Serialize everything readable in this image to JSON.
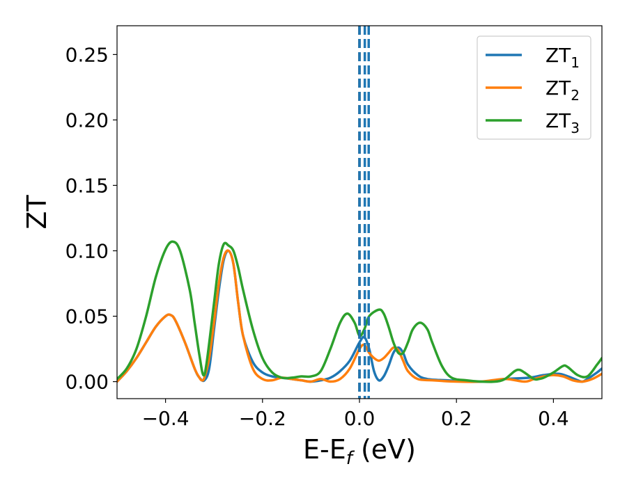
{
  "chart_data": {
    "type": "line",
    "xlabel": {
      "base": "E-E",
      "subscript": "f",
      "suffix": " (eV)"
    },
    "ylabel": "ZT",
    "xlim": [
      -0.5,
      0.5
    ],
    "ylim": [
      -0.013,
      0.272
    ],
    "xticks": [
      -0.4,
      -0.2,
      0.0,
      0.2,
      0.4
    ],
    "xtick_labels": [
      "−0.4",
      "−0.2",
      "0.0",
      "0.2",
      "0.4"
    ],
    "yticks": [
      0.0,
      0.05,
      0.1,
      0.15,
      0.2,
      0.25
    ],
    "ytick_labels": [
      "0.00",
      "0.05",
      "0.10",
      "0.15",
      "0.20",
      "0.25"
    ],
    "grid": false,
    "legend_position": "top-right",
    "vertical_lines": [
      {
        "x": 0.0,
        "color": "#000000",
        "style": "dashed"
      },
      {
        "x": 0.0,
        "color": "#1f77b4",
        "style": "dashed"
      },
      {
        "x": 0.011,
        "color": "#1f77b4",
        "style": "dashed"
      },
      {
        "x": 0.019,
        "color": "#1f77b4",
        "style": "dashed"
      }
    ],
    "series": [
      {
        "name": "ZT",
        "name_sub": "1",
        "color": "#1f77b4",
        "points": [
          [
            -0.5,
            0.0
          ],
          [
            -0.48,
            0.008
          ],
          [
            -0.46,
            0.018
          ],
          [
            -0.44,
            0.03
          ],
          [
            -0.42,
            0.042
          ],
          [
            -0.4,
            0.05
          ],
          [
            -0.39,
            0.051
          ],
          [
            -0.38,
            0.047
          ],
          [
            -0.36,
            0.03
          ],
          [
            -0.34,
            0.01
          ],
          [
            -0.33,
            0.003
          ],
          [
            -0.32,
            0.001
          ],
          [
            -0.31,
            0.01
          ],
          [
            -0.3,
            0.04
          ],
          [
            -0.29,
            0.07
          ],
          [
            -0.28,
            0.093
          ],
          [
            -0.27,
            0.1
          ],
          [
            -0.26,
            0.09
          ],
          [
            -0.25,
            0.06
          ],
          [
            -0.24,
            0.035
          ],
          [
            -0.22,
            0.015
          ],
          [
            -0.2,
            0.007
          ],
          [
            -0.18,
            0.004
          ],
          [
            -0.16,
            0.003
          ],
          [
            -0.14,
            0.002
          ],
          [
            -0.12,
            0.001
          ],
          [
            -0.1,
            0.0
          ],
          [
            -0.08,
            0.001
          ],
          [
            -0.06,
            0.003
          ],
          [
            -0.04,
            0.008
          ],
          [
            -0.02,
            0.016
          ],
          [
            0.0,
            0.03
          ],
          [
            0.01,
            0.034
          ],
          [
            0.02,
            0.025
          ],
          [
            0.03,
            0.008
          ],
          [
            0.04,
            0.001
          ],
          [
            0.05,
            0.004
          ],
          [
            0.06,
            0.012
          ],
          [
            0.07,
            0.022
          ],
          [
            0.08,
            0.026
          ],
          [
            0.09,
            0.022
          ],
          [
            0.1,
            0.013
          ],
          [
            0.12,
            0.005
          ],
          [
            0.14,
            0.002
          ],
          [
            0.18,
            0.001
          ],
          [
            0.25,
            0.0
          ],
          [
            0.3,
            0.002
          ],
          [
            0.35,
            0.003
          ],
          [
            0.38,
            0.005
          ],
          [
            0.41,
            0.006
          ],
          [
            0.43,
            0.004
          ],
          [
            0.45,
            0.001
          ],
          [
            0.46,
            0.0
          ],
          [
            0.47,
            0.002
          ],
          [
            0.49,
            0.007
          ],
          [
            0.5,
            0.01
          ]
        ]
      },
      {
        "name": "ZT",
        "name_sub": "2",
        "color": "#ff7f0e",
        "points": [
          [
            -0.5,
            0.0
          ],
          [
            -0.48,
            0.008
          ],
          [
            -0.46,
            0.018
          ],
          [
            -0.44,
            0.03
          ],
          [
            -0.42,
            0.042
          ],
          [
            -0.4,
            0.05
          ],
          [
            -0.39,
            0.051
          ],
          [
            -0.38,
            0.047
          ],
          [
            -0.36,
            0.03
          ],
          [
            -0.34,
            0.01
          ],
          [
            -0.33,
            0.003
          ],
          [
            -0.325,
            0.001
          ],
          [
            -0.32,
            0.003
          ],
          [
            -0.31,
            0.018
          ],
          [
            -0.3,
            0.045
          ],
          [
            -0.29,
            0.075
          ],
          [
            -0.28,
            0.095
          ],
          [
            -0.27,
            0.1
          ],
          [
            -0.26,
            0.09
          ],
          [
            -0.25,
            0.06
          ],
          [
            -0.24,
            0.035
          ],
          [
            -0.22,
            0.01
          ],
          [
            -0.2,
            0.002
          ],
          [
            -0.18,
            0.001
          ],
          [
            -0.16,
            0.003
          ],
          [
            -0.14,
            0.002
          ],
          [
            -0.12,
            0.001
          ],
          [
            -0.1,
            0.0
          ],
          [
            -0.08,
            0.002
          ],
          [
            -0.06,
            0.0
          ],
          [
            -0.04,
            0.002
          ],
          [
            -0.02,
            0.01
          ],
          [
            0.0,
            0.025
          ],
          [
            0.01,
            0.028
          ],
          [
            0.02,
            0.022
          ],
          [
            0.03,
            0.018
          ],
          [
            0.04,
            0.016
          ],
          [
            0.05,
            0.018
          ],
          [
            0.06,
            0.022
          ],
          [
            0.07,
            0.026
          ],
          [
            0.08,
            0.024
          ],
          [
            0.09,
            0.016
          ],
          [
            0.1,
            0.008
          ],
          [
            0.12,
            0.002
          ],
          [
            0.15,
            0.001
          ],
          [
            0.2,
            0.0
          ],
          [
            0.25,
            0.0
          ],
          [
            0.3,
            0.002
          ],
          [
            0.34,
            0.0
          ],
          [
            0.36,
            0.002
          ],
          [
            0.38,
            0.004
          ],
          [
            0.4,
            0.005
          ],
          [
            0.42,
            0.004
          ],
          [
            0.44,
            0.001
          ],
          [
            0.46,
            0.0
          ],
          [
            0.48,
            0.002
          ],
          [
            0.5,
            0.006
          ]
        ]
      },
      {
        "name": "ZT",
        "name_sub": "3",
        "color": "#2ca02c",
        "points": [
          [
            -0.5,
            0.002
          ],
          [
            -0.48,
            0.01
          ],
          [
            -0.46,
            0.025
          ],
          [
            -0.44,
            0.05
          ],
          [
            -0.42,
            0.08
          ],
          [
            -0.4,
            0.101
          ],
          [
            -0.385,
            0.107
          ],
          [
            -0.37,
            0.1
          ],
          [
            -0.35,
            0.07
          ],
          [
            -0.34,
            0.045
          ],
          [
            -0.33,
            0.02
          ],
          [
            -0.322,
            0.005
          ],
          [
            -0.315,
            0.015
          ],
          [
            -0.3,
            0.06
          ],
          [
            -0.29,
            0.09
          ],
          [
            -0.28,
            0.105
          ],
          [
            -0.27,
            0.104
          ],
          [
            -0.26,
            0.1
          ],
          [
            -0.25,
            0.087
          ],
          [
            -0.24,
            0.07
          ],
          [
            -0.22,
            0.04
          ],
          [
            -0.2,
            0.018
          ],
          [
            -0.18,
            0.007
          ],
          [
            -0.16,
            0.003
          ],
          [
            -0.14,
            0.003
          ],
          [
            -0.12,
            0.004
          ],
          [
            -0.1,
            0.004
          ],
          [
            -0.08,
            0.008
          ],
          [
            -0.06,
            0.025
          ],
          [
            -0.04,
            0.045
          ],
          [
            -0.025,
            0.052
          ],
          [
            -0.01,
            0.045
          ],
          [
            0.0,
            0.035
          ],
          [
            0.01,
            0.04
          ],
          [
            0.02,
            0.05
          ],
          [
            0.04,
            0.055
          ],
          [
            0.05,
            0.052
          ],
          [
            0.06,
            0.042
          ],
          [
            0.07,
            0.03
          ],
          [
            0.08,
            0.022
          ],
          [
            0.09,
            0.022
          ],
          [
            0.1,
            0.03
          ],
          [
            0.11,
            0.04
          ],
          [
            0.125,
            0.045
          ],
          [
            0.14,
            0.04
          ],
          [
            0.15,
            0.03
          ],
          [
            0.17,
            0.012
          ],
          [
            0.19,
            0.003
          ],
          [
            0.22,
            0.001
          ],
          [
            0.25,
            0.0
          ],
          [
            0.28,
            0.0
          ],
          [
            0.3,
            0.002
          ],
          [
            0.32,
            0.008
          ],
          [
            0.33,
            0.009
          ],
          [
            0.34,
            0.007
          ],
          [
            0.36,
            0.002
          ],
          [
            0.37,
            0.002
          ],
          [
            0.38,
            0.003
          ],
          [
            0.4,
            0.007
          ],
          [
            0.42,
            0.012
          ],
          [
            0.43,
            0.011
          ],
          [
            0.45,
            0.005
          ],
          [
            0.47,
            0.004
          ],
          [
            0.49,
            0.013
          ],
          [
            0.5,
            0.018
          ]
        ]
      }
    ]
  }
}
